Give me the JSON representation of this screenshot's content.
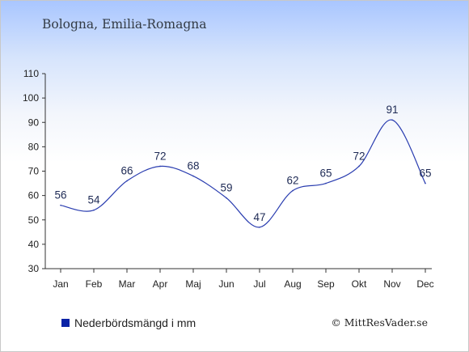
{
  "location": "Bologna, Emilia-Romagna",
  "legend": {
    "label": "Nederbördsmängd i mm",
    "swatch_color": "#0a22a6"
  },
  "credit": "© MittResVader.se",
  "colors": {
    "line": "#2a3db0",
    "axis": "#333333",
    "text": "#1e2a55"
  },
  "chart_data": {
    "type": "line",
    "categories": [
      "Jan",
      "Feb",
      "Mar",
      "Apr",
      "Maj",
      "Jun",
      "Jul",
      "Aug",
      "Sep",
      "Okt",
      "Nov",
      "Dec"
    ],
    "series": [
      {
        "name": "Nederbördsmängd i mm",
        "values": [
          56,
          54,
          66,
          72,
          68,
          59,
          47,
          62,
          65,
          72,
          91,
          65
        ]
      }
    ],
    "ylim": [
      30,
      110
    ],
    "yticks": [
      30,
      40,
      50,
      60,
      70,
      80,
      90,
      100,
      110
    ],
    "grid": false,
    "legend_position": "bottom-left"
  }
}
